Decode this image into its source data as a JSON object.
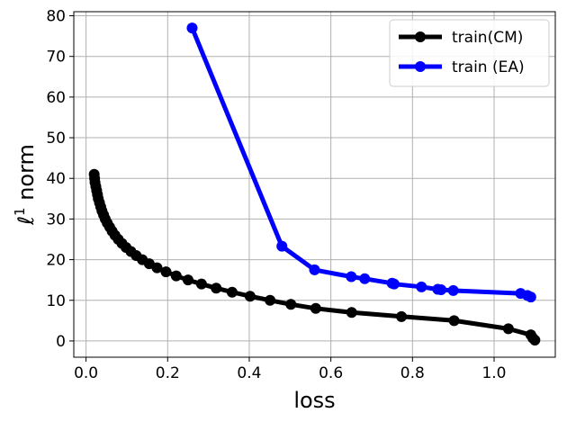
{
  "chart_data": {
    "type": "line",
    "xlabel": "loss",
    "ylabel_prefix": "ℓ",
    "ylabel_sup": "1",
    "ylabel_suffix": " norm",
    "xlim": [
      -0.03,
      1.15
    ],
    "ylim": [
      -4,
      81
    ],
    "x_ticks": [
      0.0,
      0.2,
      0.4,
      0.6,
      0.8,
      1.0
    ],
    "x_tick_labels": [
      "0.0",
      "0.2",
      "0.4",
      "0.6",
      "0.8",
      "1.0"
    ],
    "y_ticks": [
      0,
      10,
      20,
      30,
      40,
      50,
      60,
      70,
      80
    ],
    "y_tick_labels": [
      "0",
      "10",
      "20",
      "30",
      "40",
      "50",
      "60",
      "70",
      "80"
    ],
    "grid": true,
    "legend_position": "top-right",
    "series": [
      {
        "name": "train(CM)",
        "color": "#000000",
        "x": [
          0.02,
          0.021,
          0.022,
          0.024,
          0.026,
          0.028,
          0.03,
          0.033,
          0.036,
          0.039,
          0.043,
          0.047,
          0.052,
          0.058,
          0.064,
          0.071,
          0.079,
          0.088,
          0.098,
          0.11,
          0.123,
          0.138,
          0.155,
          0.174,
          0.196,
          0.221,
          0.25,
          0.283,
          0.319,
          0.358,
          0.402,
          0.451,
          0.502,
          0.563,
          0.651,
          0.773,
          0.902,
          1.035,
          1.09,
          1.095,
          1.1
        ],
        "y": [
          41.0,
          40.0,
          39.0,
          38.0,
          37.0,
          36.0,
          35.0,
          34.0,
          33.0,
          32.0,
          31.0,
          30.0,
          29.0,
          28.0,
          27.0,
          26.0,
          25.0,
          24.0,
          23.0,
          22.0,
          21.0,
          20.0,
          19.0,
          18.0,
          17.0,
          16.0,
          15.0,
          14.0,
          13.0,
          12.0,
          11.0,
          10.0,
          9.0,
          8.0,
          7.0,
          6.0,
          5.0,
          3.0,
          1.5,
          0.7,
          0.2
        ]
      },
      {
        "name": "train (EA)",
        "color": "#0000ff",
        "x": [
          0.26,
          0.48,
          0.56,
          0.65,
          0.683,
          0.75,
          0.755,
          0.822,
          0.862,
          0.87,
          0.9,
          1.065,
          1.082,
          1.09
        ],
        "y": [
          77.0,
          23.3,
          17.5,
          15.8,
          15.3,
          14.2,
          14.0,
          13.3,
          12.7,
          12.6,
          12.4,
          11.7,
          11.2,
          10.8
        ]
      }
    ]
  }
}
